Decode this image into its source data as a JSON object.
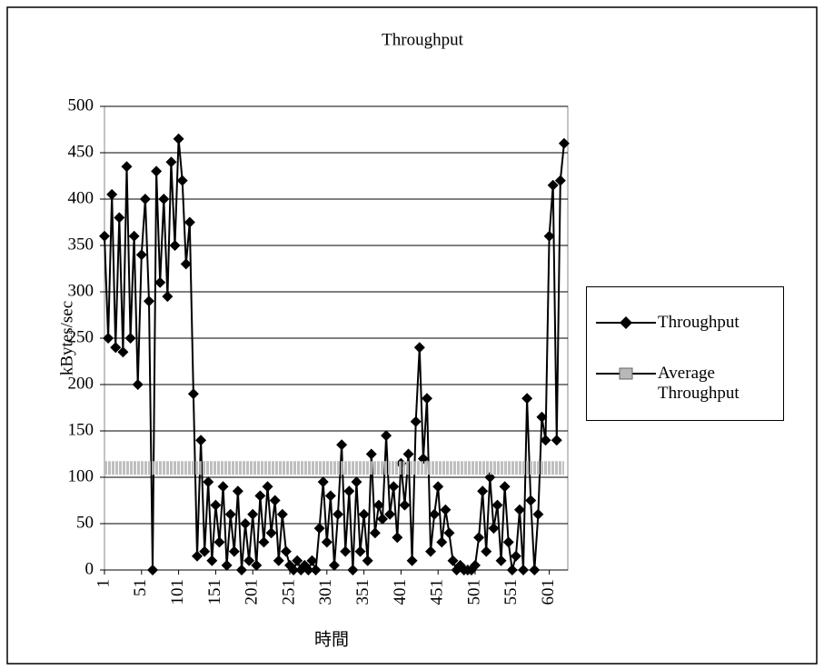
{
  "chart_data": {
    "type": "line",
    "title": "Throughput",
    "x_label": "時間",
    "y_label": "kBytes/sec",
    "xlim": [
      1,
      626
    ],
    "xticks": [
      1,
      51,
      101,
      151,
      201,
      251,
      301,
      351,
      401,
      451,
      501,
      551,
      601
    ],
    "ylim": [
      0,
      500
    ],
    "yticks": [
      0,
      50,
      100,
      150,
      200,
      250,
      300,
      350,
      400,
      450,
      500
    ],
    "grid": true,
    "legend": "right",
    "series": [
      {
        "name": "Throughput",
        "color": "#000000",
        "x": [
          1,
          6,
          11,
          16,
          21,
          26,
          31,
          36,
          41,
          46,
          51,
          56,
          61,
          66,
          71,
          76,
          81,
          86,
          91,
          96,
          101,
          106,
          111,
          116,
          121,
          126,
          131,
          136,
          141,
          146,
          151,
          156,
          161,
          166,
          171,
          176,
          181,
          186,
          191,
          196,
          201,
          206,
          211,
          216,
          221,
          226,
          231,
          236,
          241,
          246,
          251,
          256,
          261,
          266,
          271,
          276,
          281,
          286,
          291,
          296,
          301,
          306,
          311,
          316,
          321,
          326,
          331,
          336,
          341,
          346,
          351,
          356,
          361,
          366,
          371,
          376,
          381,
          386,
          391,
          396,
          401,
          406,
          411,
          416,
          421,
          426,
          431,
          436,
          441,
          446,
          451,
          456,
          461,
          466,
          471,
          476,
          481,
          486,
          491,
          496,
          501,
          506,
          511,
          516,
          521,
          526,
          531,
          536,
          541,
          546,
          551,
          556,
          561,
          566,
          571,
          576,
          581,
          586,
          591,
          596,
          601,
          606,
          611,
          616,
          621
        ],
        "values": [
          360,
          250,
          405,
          240,
          380,
          235,
          435,
          250,
          360,
          200,
          340,
          400,
          290,
          0,
          430,
          310,
          400,
          295,
          440,
          350,
          465,
          420,
          330,
          375,
          190,
          15,
          140,
          20,
          95,
          10,
          70,
          30,
          90,
          5,
          60,
          20,
          85,
          0,
          50,
          10,
          60,
          5,
          80,
          30,
          90,
          40,
          75,
          10,
          60,
          20,
          5,
          0,
          10,
          0,
          5,
          0,
          10,
          0,
          45,
          95,
          30,
          80,
          5,
          60,
          135,
          20,
          85,
          0,
          95,
          20,
          60,
          10,
          125,
          40,
          70,
          55,
          145,
          60,
          90,
          35,
          115,
          70,
          125,
          10,
          160,
          240,
          120,
          185,
          20,
          60,
          90,
          30,
          65,
          40,
          10,
          0,
          5,
          0,
          0,
          0,
          5,
          35,
          85,
          20,
          100,
          45,
          70,
          10,
          90,
          30,
          0,
          15,
          65,
          0,
          185,
          75,
          0,
          60,
          165,
          140,
          360,
          415,
          140,
          420,
          460
        ]
      },
      {
        "name": "Average Throughput",
        "color": "#b8b8b8",
        "x": [
          1,
          621
        ],
        "values": [
          110,
          110
        ]
      }
    ]
  }
}
